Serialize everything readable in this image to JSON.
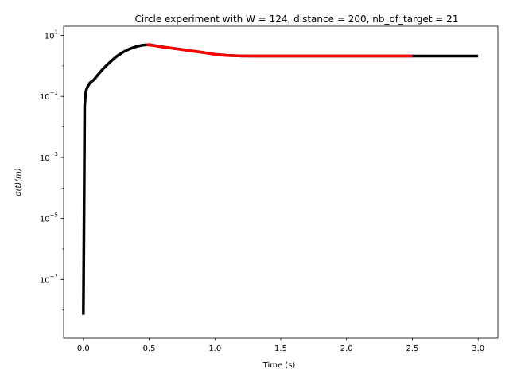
{
  "chart_data": {
    "type": "line",
    "title": "Circle experiment with W = 124, distance = 200, nb_of_target = 21",
    "xlabel": "Time (s)",
    "ylabel": "σ(t)(m)",
    "xlim": [
      -0.15,
      3.15
    ],
    "ylim": [
      1.2e-09,
      20
    ],
    "yscale": "log",
    "grid": false,
    "x_ticks": [
      0.0,
      0.5,
      1.0,
      1.5,
      2.0,
      2.5,
      3.0
    ],
    "x_tick_labels": [
      "0.0",
      "0.5",
      "1.0",
      "1.5",
      "2.0",
      "2.5",
      "3.0"
    ],
    "y_ticks": [
      1e-07,
      1e-05,
      0.001,
      0.1,
      10
    ],
    "y_tick_labels": [
      {
        "base": "10",
        "exp": "−7"
      },
      {
        "base": "10",
        "exp": "−5"
      },
      {
        "base": "10",
        "exp": "−3"
      },
      {
        "base": "10",
        "exp": "−1"
      },
      {
        "base": "10",
        "exp": "1"
      }
    ],
    "series": [
      {
        "color": "#000000",
        "x": [
          0.0,
          0.005,
          0.01,
          0.015,
          0.02,
          0.03,
          0.05,
          0.08,
          0.1,
          0.15,
          0.2,
          0.25,
          0.3,
          0.35,
          0.4,
          0.45,
          0.5,
          0.55,
          0.6,
          0.7,
          0.8,
          0.9,
          1.0,
          1.1,
          1.2,
          1.3,
          1.5,
          2.0,
          2.5,
          3.0
        ],
        "y": [
          7e-09,
          1e-05,
          0.05,
          0.1,
          0.15,
          0.2,
          0.28,
          0.35,
          0.45,
          0.8,
          1.3,
          2.0,
          2.8,
          3.6,
          4.3,
          4.8,
          5.0,
          4.6,
          4.2,
          3.7,
          3.2,
          2.8,
          2.4,
          2.2,
          2.12,
          2.1,
          2.1,
          2.1,
          2.1,
          2.1
        ]
      },
      {
        "color": "#ff0000",
        "x": [
          0.48,
          0.55,
          0.6,
          0.7,
          0.8,
          0.9,
          1.0,
          1.08
        ],
        "y": [
          5.0,
          4.6,
          4.2,
          3.7,
          3.2,
          2.8,
          2.4,
          2.2
        ]
      },
      {
        "color": "#ff0000",
        "x": [
          1.08,
          1.2,
          1.3,
          1.5,
          2.0,
          2.5
        ],
        "y": [
          2.2,
          2.12,
          2.1,
          2.1,
          2.1,
          2.1
        ]
      }
    ]
  }
}
